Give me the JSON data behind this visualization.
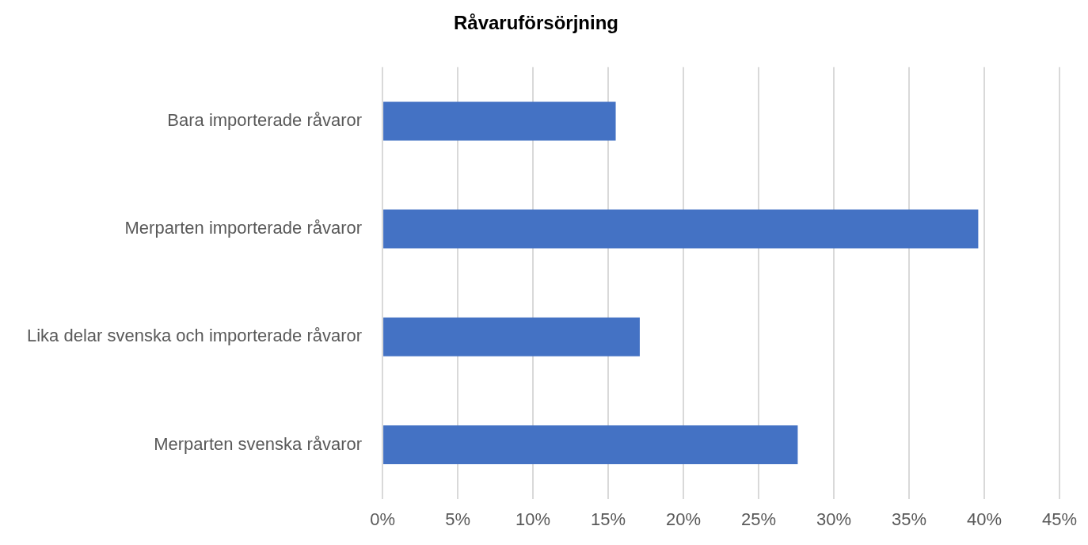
{
  "chart_data": {
    "type": "bar",
    "orientation": "horizontal",
    "title": "Råvaruförsörjning",
    "categories": [
      "Bara importerade råvaror",
      "Merparten importerade råvaror",
      "Lika delar svenska och importerade råvaror",
      "Merparten svenska råvaror"
    ],
    "values": [
      15.5,
      39.6,
      17.1,
      27.6
    ],
    "color": "#4472c4",
    "xlim": [
      0,
      45
    ],
    "xticks": [
      {
        "value": 0,
        "label": "0%"
      },
      {
        "value": 5,
        "label": "5%"
      },
      {
        "value": 10,
        "label": "10%"
      },
      {
        "value": 15,
        "label": "15%"
      },
      {
        "value": 20,
        "label": "20%"
      },
      {
        "value": 25,
        "label": "25%"
      },
      {
        "value": 30,
        "label": "30%"
      },
      {
        "value": 35,
        "label": "35%"
      },
      {
        "value": 40,
        "label": "40%"
      },
      {
        "value": 45,
        "label": "45%"
      }
    ],
    "grid": "x",
    "legend": false
  }
}
